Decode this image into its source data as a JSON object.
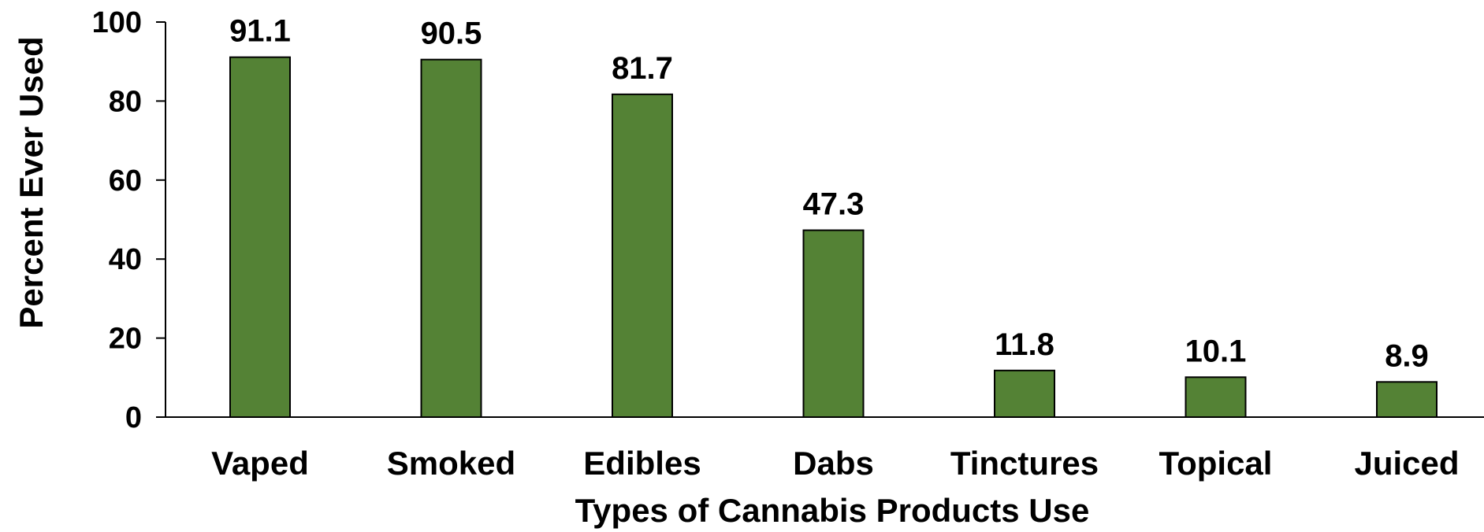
{
  "chart_data": {
    "type": "bar",
    "title": "",
    "xlabel": "Types of Cannabis Products Use",
    "ylabel": "Percent Ever Used",
    "categories": [
      "Vaped",
      "Smoked",
      "Edibles",
      "Dabs",
      "Tinctures",
      "Topical",
      "Juiced"
    ],
    "values": [
      91.1,
      90.5,
      81.7,
      47.3,
      11.8,
      10.1,
      8.9
    ],
    "data_labels": [
      "91.1",
      "90.5",
      "81.7",
      "47.3",
      "11.8",
      "10.1",
      "8.9"
    ],
    "ylim": [
      0,
      100
    ],
    "yticks": [
      "0",
      "20",
      "40",
      "60",
      "80",
      "100"
    ],
    "grid": false,
    "legend": "none",
    "bar_color": "#548235",
    "bar_edge_color": "#000000"
  }
}
